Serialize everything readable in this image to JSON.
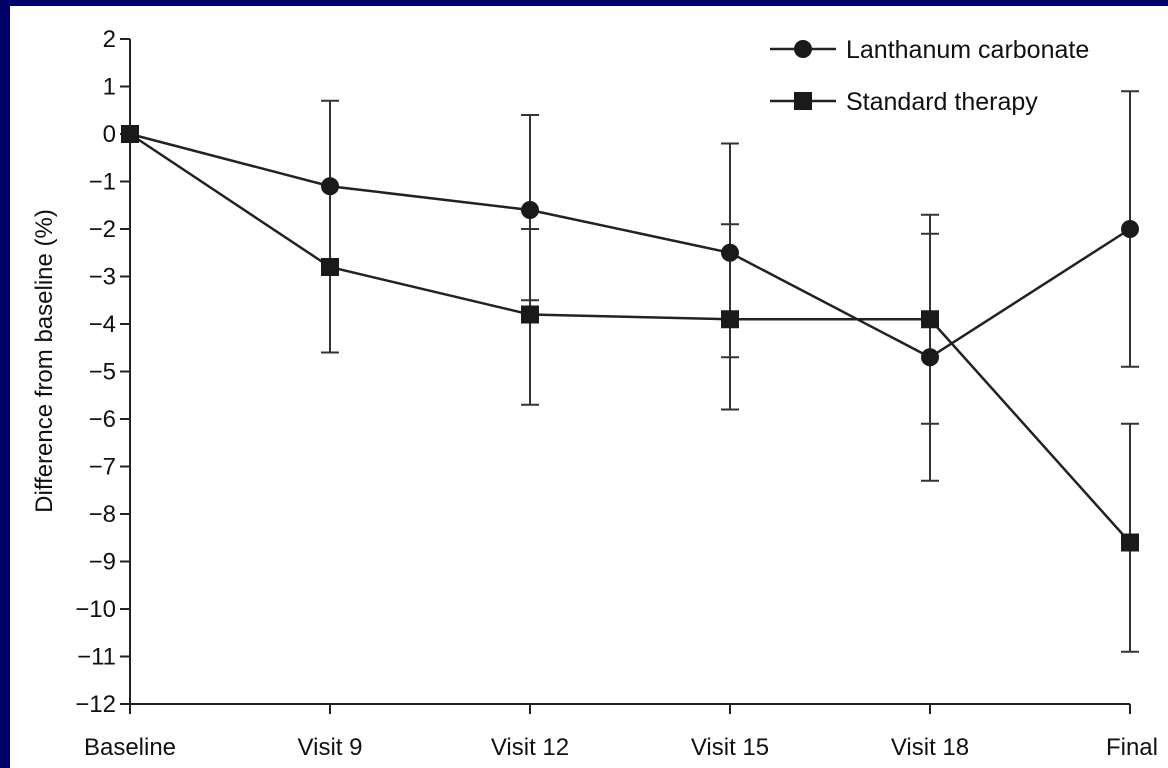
{
  "chart_data": {
    "type": "line",
    "title": "",
    "xlabel": "",
    "ylabel": "Difference from baseline (%)",
    "ylim": [
      -12,
      2
    ],
    "yticks": [
      2,
      1,
      0,
      -1,
      -2,
      -3,
      -4,
      -5,
      -6,
      -7,
      -8,
      -9,
      -10,
      -11,
      -12
    ],
    "ytick_labels": [
      "2",
      "1",
      "0",
      "−1",
      "−2",
      "−3",
      "−4",
      "−5",
      "−6",
      "−7",
      "−8",
      "−9",
      "−10",
      "−11",
      "−12"
    ],
    "categories": [
      "Baseline",
      "Visit 9",
      "Visit 12",
      "Visit 15",
      "Visit 18",
      "Final"
    ],
    "legend_position": "top-right",
    "grid": false,
    "series": [
      {
        "name": "Lanthanum carbonate",
        "marker": "circle",
        "values": [
          0,
          -1.1,
          -1.6,
          -2.5,
          -4.7,
          -2.0
        ],
        "error_upper": [
          0,
          0.7,
          0.4,
          -0.2,
          -1.7,
          0.9
        ],
        "error_lower": [
          0,
          -4.6,
          -3.5,
          -4.7,
          -7.3,
          -4.9
        ]
      },
      {
        "name": "Standard therapy",
        "marker": "square",
        "values": [
          0,
          -2.8,
          -3.8,
          -3.9,
          -3.9,
          -8.6
        ],
        "error_upper": [
          0,
          -2.8,
          -2.0,
          -1.9,
          -2.1,
          -6.1
        ],
        "error_lower": [
          0,
          -4.6,
          -5.7,
          -5.8,
          -6.1,
          -10.9
        ]
      }
    ]
  }
}
